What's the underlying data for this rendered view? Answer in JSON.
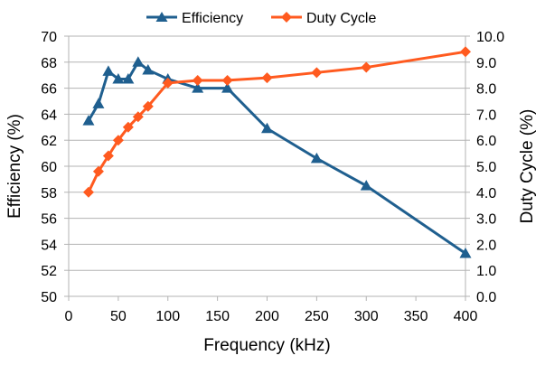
{
  "chart_data": {
    "type": "line",
    "title": "",
    "xlabel": "Frequency (kHz)",
    "ylabel_left": "Efficiency (%)",
    "ylabel_right": "Duty Cycle (%)",
    "xlim": [
      0,
      400
    ],
    "x_ticks": [
      "0",
      "50",
      "100",
      "150",
      "200",
      "250",
      "300",
      "350",
      "400"
    ],
    "ylim_left": [
      50,
      70
    ],
    "y_left_ticks": [
      "50",
      "52",
      "54",
      "56",
      "58",
      "60",
      "62",
      "64",
      "66",
      "68",
      "70"
    ],
    "ylim_right": [
      0,
      10
    ],
    "y_right_ticks": [
      "0.0",
      "1.0",
      "2.0",
      "3.0",
      "4.0",
      "5.0",
      "6.0",
      "7.0",
      "8.0",
      "9.0",
      "10.0"
    ],
    "grid": "horizontal",
    "legend_position": "top",
    "series": [
      {
        "name": "Efficiency",
        "axis": "left",
        "marker": "triangle",
        "color": "#1f5f8f",
        "x": [
          20,
          30,
          40,
          50,
          60,
          70,
          80,
          100,
          130,
          160,
          200,
          250,
          300,
          400
        ],
        "y": [
          63.5,
          64.8,
          67.3,
          66.7,
          66.7,
          68.0,
          67.4,
          66.7,
          66.0,
          66.0,
          62.9,
          60.6,
          58.5,
          53.3
        ]
      },
      {
        "name": "Duty Cycle",
        "axis": "right",
        "marker": "diamond",
        "color": "#ff5a1f",
        "x": [
          20,
          30,
          40,
          50,
          60,
          70,
          80,
          100,
          130,
          160,
          200,
          250,
          300,
          400
        ],
        "y": [
          4.0,
          4.8,
          5.4,
          6.0,
          6.5,
          6.9,
          7.3,
          8.2,
          8.3,
          8.3,
          8.4,
          8.6,
          8.8,
          9.4
        ]
      }
    ]
  }
}
